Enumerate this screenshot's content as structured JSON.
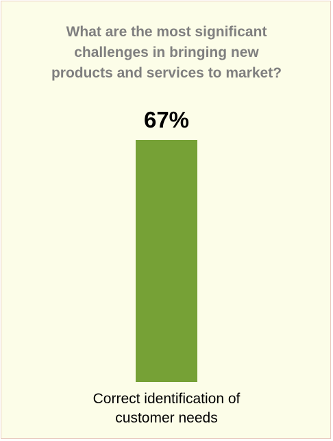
{
  "chart_data": {
    "type": "bar",
    "title_lines": [
      "What are the most significant",
      "challenges in bringing new",
      "products and services to market?"
    ],
    "categories": [
      "Correct identification of customer needs"
    ],
    "category_label_lines": [
      "Correct identification of",
      "customer needs"
    ],
    "values": [
      67
    ],
    "value_labels": [
      "67%"
    ],
    "ylim": [
      0,
      67
    ],
    "grid": false,
    "legend": "none"
  },
  "colors": {
    "bar": "#76a136",
    "title": "#7f7f7f",
    "background": "#fcfde8",
    "border": "#e8c9bf"
  }
}
